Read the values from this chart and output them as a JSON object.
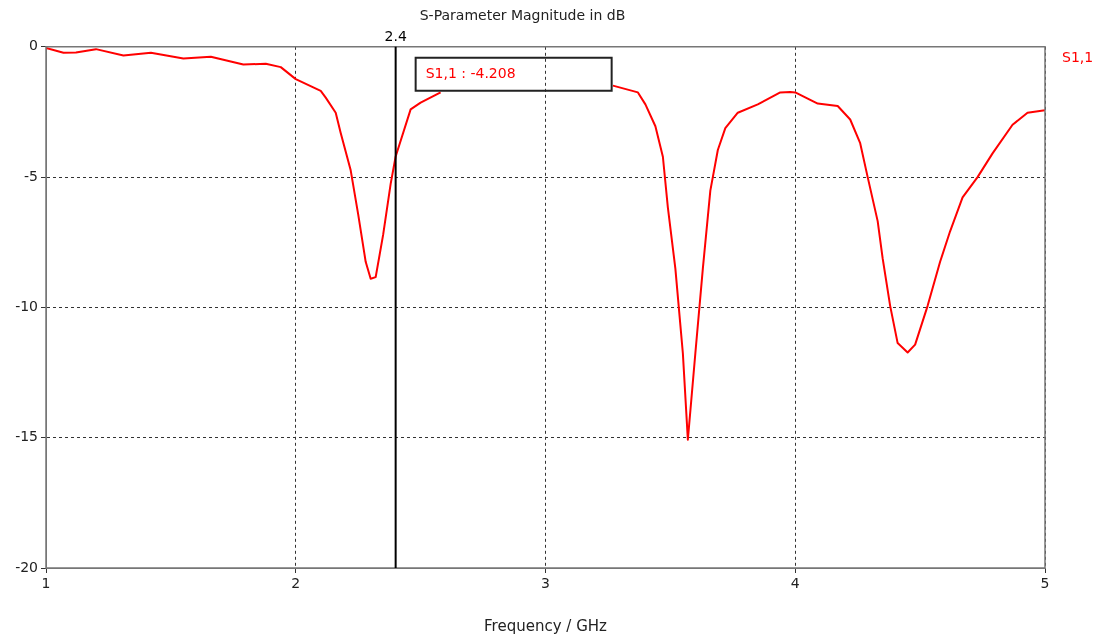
{
  "chart_data": {
    "type": "line",
    "title": "S-Parameter Magnitude in dB",
    "xlabel": "Frequency / GHz",
    "xlim": [
      1,
      5
    ],
    "xticks": [
      1,
      2,
      3,
      4,
      5
    ],
    "ylim": [
      -20,
      0
    ],
    "yticks": [
      0,
      -5,
      -10,
      -15,
      -20
    ],
    "grid": true,
    "marker": "none",
    "line_style": "solid",
    "ref_lines": [
      {
        "axis": "x",
        "value": 2.4,
        "label": "2.4",
        "color": "#000000"
      }
    ],
    "annotations": [
      "S1,1 : -4.208"
    ],
    "series": [
      {
        "name": "S1,1",
        "color": "#ff0000",
        "x": [
          1.0,
          1.07,
          1.12,
          1.2,
          1.31,
          1.42,
          1.55,
          1.66,
          1.79,
          1.88,
          1.94,
          2.0,
          2.1,
          2.12,
          2.16,
          2.18,
          2.22,
          2.25,
          2.28,
          2.3,
          2.32,
          2.35,
          2.38,
          2.4,
          2.46,
          2.5,
          2.58,
          2.9,
          3.27,
          3.37,
          3.4,
          3.44,
          3.47,
          3.49,
          3.52,
          3.55,
          3.57,
          3.6,
          3.63,
          3.66,
          3.69,
          3.72,
          3.77,
          3.85,
          3.94,
          3.98,
          4.0,
          4.09,
          4.17,
          4.22,
          4.26,
          4.29,
          4.33,
          4.35,
          4.38,
          4.41,
          4.45,
          4.48,
          4.53,
          4.58,
          4.62,
          4.67,
          4.73,
          4.79,
          4.87,
          4.93,
          5.0
        ],
        "values": [
          -0.04,
          -0.23,
          -0.22,
          -0.09,
          -0.33,
          -0.23,
          -0.45,
          -0.38,
          -0.68,
          -0.65,
          -0.78,
          -1.24,
          -1.69,
          -1.95,
          -2.53,
          -3.31,
          -4.74,
          -6.43,
          -8.25,
          -8.9,
          -8.84,
          -7.21,
          -5.26,
          -4.21,
          -2.4,
          -2.14,
          -1.75,
          null,
          -1.49,
          -1.75,
          -2.21,
          -3.05,
          -4.22,
          -6.17,
          -8.51,
          -11.76,
          -15.08,
          -11.76,
          -8.51,
          -5.52,
          -3.96,
          -3.12,
          -2.53,
          -2.21,
          -1.75,
          -1.73,
          -1.75,
          -2.18,
          -2.27,
          -2.79,
          -3.7,
          -5.0,
          -6.69,
          -8.12,
          -9.94,
          -11.37,
          -11.73,
          -11.43,
          -9.94,
          -8.25,
          -7.08,
          -5.78,
          -5.0,
          -4.09,
          -2.99,
          -2.53,
          -2.43
        ]
      }
    ]
  }
}
